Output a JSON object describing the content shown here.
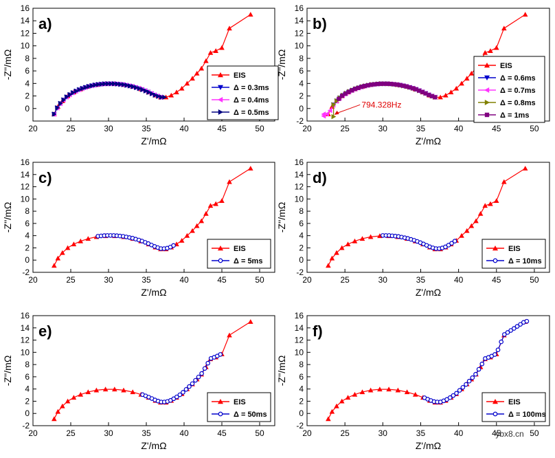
{
  "chart_data": [
    {
      "panel_label": "a)",
      "type": "scatter",
      "xlabel": "Z'/mΩ",
      "ylabel": "-Z''/mΩ",
      "xlim": [
        20,
        52
      ],
      "ylim": [
        -2,
        16
      ],
      "xticks": [
        20,
        25,
        30,
        35,
        40,
        45,
        50
      ],
      "yticks": [
        0,
        2,
        4,
        6,
        8,
        10,
        12,
        14,
        16
      ],
      "legend_position": "right-center",
      "series": [
        {
          "name": "EIS",
          "color": "#ff0000",
          "marker": "triangle-up",
          "range": "full"
        },
        {
          "name": "Δ = 0.3ms",
          "color": "#0000cc",
          "marker": "triangle-down",
          "range": [
            22.8,
            36.9
          ]
        },
        {
          "name": "Δ = 0.4ms",
          "color": "#ff33ff",
          "marker": "triangle-left",
          "range": [
            22.8,
            36.9
          ]
        },
        {
          "name": "Δ = 0.5ms",
          "color": "#000080",
          "marker": "triangle-right",
          "range": [
            22.8,
            37.4
          ]
        }
      ]
    },
    {
      "panel_label": "b)",
      "type": "scatter",
      "xlabel": "Z'/mΩ",
      "ylabel": "-Z''/mΩ",
      "xlim": [
        20,
        52
      ],
      "ylim": [
        -2,
        16
      ],
      "xticks": [
        20,
        25,
        30,
        35,
        40,
        45,
        50
      ],
      "yticks": [
        -2,
        0,
        2,
        4,
        6,
        8,
        10,
        12,
        14,
        16
      ],
      "legend_position": "left-center",
      "annotation": "794.328Hz",
      "series": [
        {
          "name": "EIS",
          "color": "#ff0000",
          "marker": "triangle-up",
          "range": "full"
        },
        {
          "name": "Δ = 0.6ms",
          "color": "#0000cc",
          "marker": "triangle-down",
          "range": [
            23.5,
            36.9
          ]
        },
        {
          "name": "Δ = 0.7ms",
          "color": "#ff33ff",
          "marker": "triangle-left",
          "range": [
            22.2,
            36.9
          ],
          "extra_points": [
            [
              22.2,
              -1.2
            ]
          ]
        },
        {
          "name": "Δ = 0.8ms",
          "color": "#808000",
          "marker": "triangle-right",
          "range": [
            23.5,
            36.9
          ],
          "extra_points": [
            [
              23.5,
              -1.3
            ]
          ]
        },
        {
          "name": "Δ = 1ms",
          "color": "#800080",
          "marker": "square",
          "range": [
            24.2,
            36.9
          ]
        }
      ]
    },
    {
      "panel_label": "c)",
      "type": "scatter",
      "xlabel": "Z'/mΩ",
      "ylabel": "-Z''/mΩ",
      "xlim": [
        20,
        52
      ],
      "ylim": [
        -2,
        16
      ],
      "xticks": [
        20,
        25,
        30,
        35,
        40,
        45,
        50
      ],
      "yticks": [
        -2,
        0,
        2,
        4,
        6,
        8,
        10,
        12,
        14,
        16
      ],
      "legend_position": "bottom-right",
      "series": [
        {
          "name": "EIS",
          "color": "#ff0000",
          "marker": "triangle-up",
          "range": "full"
        },
        {
          "name": "Δ = 5ms",
          "color": "#0000cc",
          "marker": "circle",
          "range": [
            28.6,
            38.6
          ]
        }
      ]
    },
    {
      "panel_label": "d)",
      "type": "scatter",
      "xlabel": "Z'/mΩ",
      "ylabel": "-Z''/mΩ",
      "xlim": [
        20,
        52
      ],
      "ylim": [
        -2,
        16
      ],
      "xticks": [
        20,
        25,
        30,
        35,
        40,
        45,
        50
      ],
      "yticks": [
        -2,
        0,
        2,
        4,
        6,
        8,
        10,
        12,
        14,
        16
      ],
      "legend_position": "bottom-right",
      "series": [
        {
          "name": "EIS",
          "color": "#ff0000",
          "marker": "triangle-up",
          "range": "full"
        },
        {
          "name": "Δ = 10ms",
          "color": "#0000cc",
          "marker": "circle",
          "range": [
            30.0,
            39.5
          ]
        }
      ]
    },
    {
      "panel_label": "e)",
      "type": "scatter",
      "xlabel": "Z'/mΩ",
      "ylabel": "-Z''/mΩ",
      "xlim": [
        20,
        52
      ],
      "ylim": [
        -2,
        16
      ],
      "xticks": [
        20,
        25,
        30,
        35,
        40,
        45,
        50
      ],
      "yticks": [
        -2,
        0,
        2,
        4,
        6,
        8,
        10,
        12,
        14,
        16
      ],
      "legend_position": "bottom-right",
      "series": [
        {
          "name": "EIS",
          "color": "#ff0000",
          "marker": "triangle-up",
          "range": "full"
        },
        {
          "name": "Δ = 50ms",
          "color": "#0000cc",
          "marker": "circle",
          "range": [
            34.5,
            44.8
          ]
        }
      ]
    },
    {
      "panel_label": "f)",
      "type": "scatter",
      "xlabel": "Z'/mΩ",
      "ylabel": "-Z''/mΩ",
      "xlim": [
        20,
        52
      ],
      "ylim": [
        -2,
        16
      ],
      "xticks": [
        20,
        25,
        30,
        35,
        40,
        45,
        50
      ],
      "yticks": [
        -2,
        0,
        2,
        4,
        6,
        8,
        10,
        12,
        14,
        16
      ],
      "legend_position": "bottom-right",
      "series": [
        {
          "name": "EIS",
          "color": "#ff0000",
          "marker": "triangle-up",
          "range": "full"
        },
        {
          "name": "Δ = 100ms",
          "color": "#0000cc",
          "marker": "circle",
          "range": [
            35.5,
            49.0
          ]
        }
      ]
    }
  ],
  "eis_curve": {
    "x": [
      22.8,
      23.3,
      23.9,
      24.6,
      25.4,
      26.3,
      27.3,
      28.4,
      29.6,
      30.8,
      32.0,
      33.2,
      34.3,
      35.3,
      36.2,
      36.9,
      37.6,
      38.3,
      39.0,
      39.7,
      40.4,
      41.1,
      41.7,
      42.3,
      42.9,
      43.5,
      44.2,
      45.0,
      46.0,
      48.8
    ],
    "y": [
      -0.9,
      0.3,
      1.2,
      2.0,
      2.6,
      3.1,
      3.5,
      3.8,
      3.95,
      3.95,
      3.8,
      3.5,
      3.1,
      2.6,
      2.1,
      1.8,
      1.8,
      2.1,
      2.6,
      3.2,
      4.0,
      4.8,
      5.6,
      6.4,
      7.6,
      8.9,
      9.2,
      9.7,
      12.8,
      15.0
    ]
  },
  "watermark": "ybx8.cn"
}
